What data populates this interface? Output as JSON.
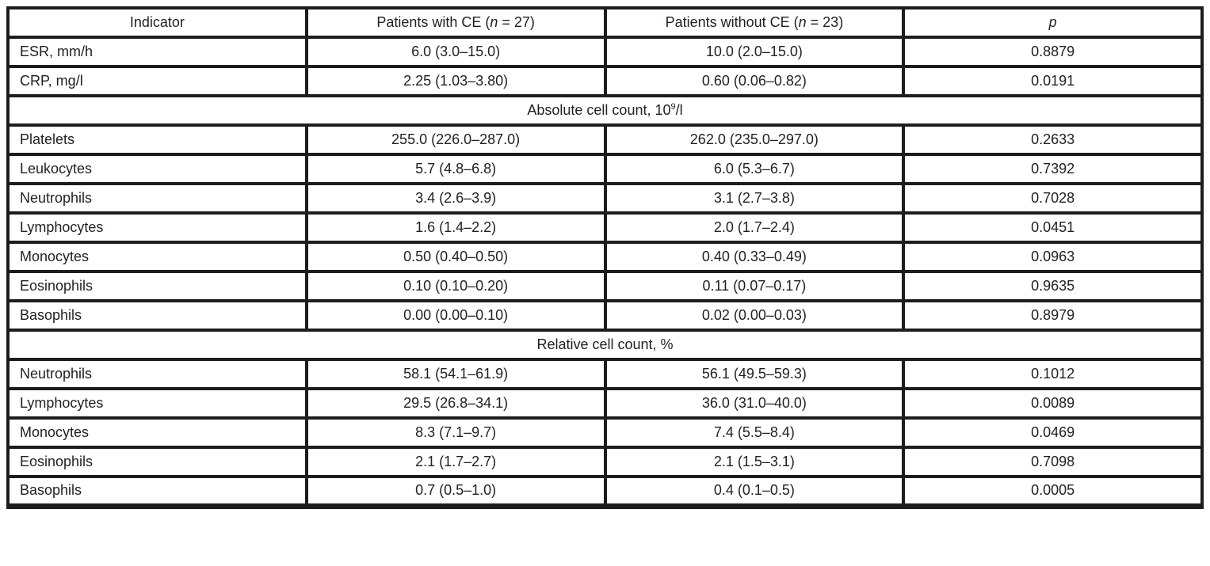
{
  "colors": {
    "border": "#1d1d1b",
    "text": "#231f20",
    "background": "#ffffff"
  },
  "table": {
    "header": {
      "columns": [
        {
          "pre": "Indicator",
          "italic": "",
          "post": ""
        },
        {
          "pre": "Patients with CE (",
          "italic": "n",
          "post": " = 27)"
        },
        {
          "pre": "Patients without CE (",
          "italic": "n",
          "post": " = 23)"
        },
        {
          "pre": "",
          "italic": "p",
          "post": ""
        }
      ]
    },
    "rows": [
      {
        "type": "data",
        "cells": [
          "ESR, mm/h",
          "6.0 (3.0–15.0)",
          "10.0 (2.0–15.0)",
          "0.8879"
        ]
      },
      {
        "type": "data",
        "cells": [
          "CRP, mg/l",
          "2.25 (1.03–3.80)",
          "0.60 (0.06–0.82)",
          "0.0191"
        ]
      },
      {
        "type": "section",
        "pre": "Absolute cell count, 10",
        "sup": "9",
        "post": "/l"
      },
      {
        "type": "data",
        "cells": [
          "Platelets",
          "255.0 (226.0–287.0)",
          "262.0 (235.0–297.0)",
          "0.2633"
        ]
      },
      {
        "type": "data",
        "cells": [
          "Leukocytes",
          "5.7 (4.8–6.8)",
          "6.0 (5.3–6.7)",
          "0.7392"
        ]
      },
      {
        "type": "data",
        "cells": [
          "Neutrophils",
          "3.4 (2.6–3.9)",
          "3.1 (2.7–3.8)",
          "0.7028"
        ]
      },
      {
        "type": "data",
        "cells": [
          "Lymphocytes",
          "1.6 (1.4–2.2)",
          "2.0 (1.7–2.4)",
          "0.0451"
        ]
      },
      {
        "type": "data",
        "cells": [
          "Monocytes",
          "0.50 (0.40–0.50)",
          "0.40 (0.33–0.49)",
          "0.0963"
        ]
      },
      {
        "type": "data",
        "cells": [
          "Eosinophils",
          "0.10 (0.10–0.20)",
          "0.11 (0.07–0.17)",
          "0.9635"
        ]
      },
      {
        "type": "data",
        "cells": [
          "Basophils",
          "0.00 (0.00–0.10)",
          "0.02 (0.00–0.03)",
          "0.8979"
        ]
      },
      {
        "type": "section",
        "pre": "Relative cell count, %",
        "sup": "",
        "post": ""
      },
      {
        "type": "data",
        "cells": [
          "Neutrophils",
          "58.1 (54.1–61.9)",
          "56.1 (49.5–59.3)",
          "0.1012"
        ]
      },
      {
        "type": "data",
        "cells": [
          "Lymphocytes",
          "29.5 (26.8–34.1)",
          "36.0 (31.0–40.0)",
          "0.0089"
        ]
      },
      {
        "type": "data",
        "cells": [
          "Monocytes",
          "8.3 (7.1–9.7)",
          "7.4 (5.5–8.4)",
          "0.0469"
        ]
      },
      {
        "type": "data",
        "cells": [
          "Eosinophils",
          "2.1 (1.7–2.7)",
          "2.1 (1.5–3.1)",
          "0.7098"
        ]
      },
      {
        "type": "data",
        "cells": [
          "Basophils",
          "0.7 (0.5–1.0)",
          "0.4 (0.1–0.5)",
          "0.0005"
        ]
      }
    ]
  }
}
